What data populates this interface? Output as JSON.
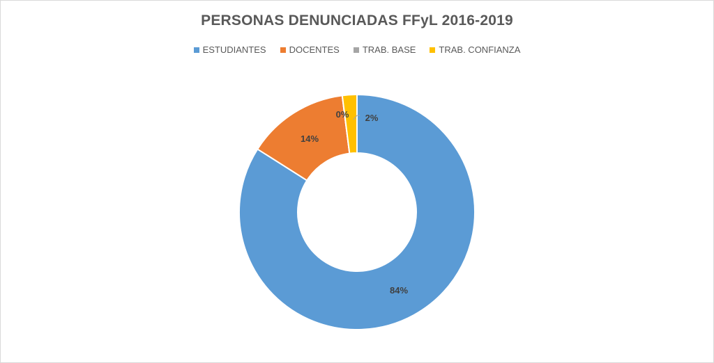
{
  "chart_data": {
    "type": "pie",
    "subtype": "doughnut",
    "title": "PERSONAS DENUNCIADAS FFyL 2016-2019",
    "legend_position": "top",
    "categories": [
      "ESTUDIANTES",
      "DOCENTES",
      "TRAB. BASE",
      "TRAB. CONFIANZA"
    ],
    "values": [
      84,
      14,
      0,
      2
    ],
    "labels": [
      "84%",
      "14%",
      "0%",
      "2%"
    ],
    "colors": [
      "#5b9bd5",
      "#ed7d31",
      "#a5a5a5",
      "#ffc000"
    ]
  }
}
